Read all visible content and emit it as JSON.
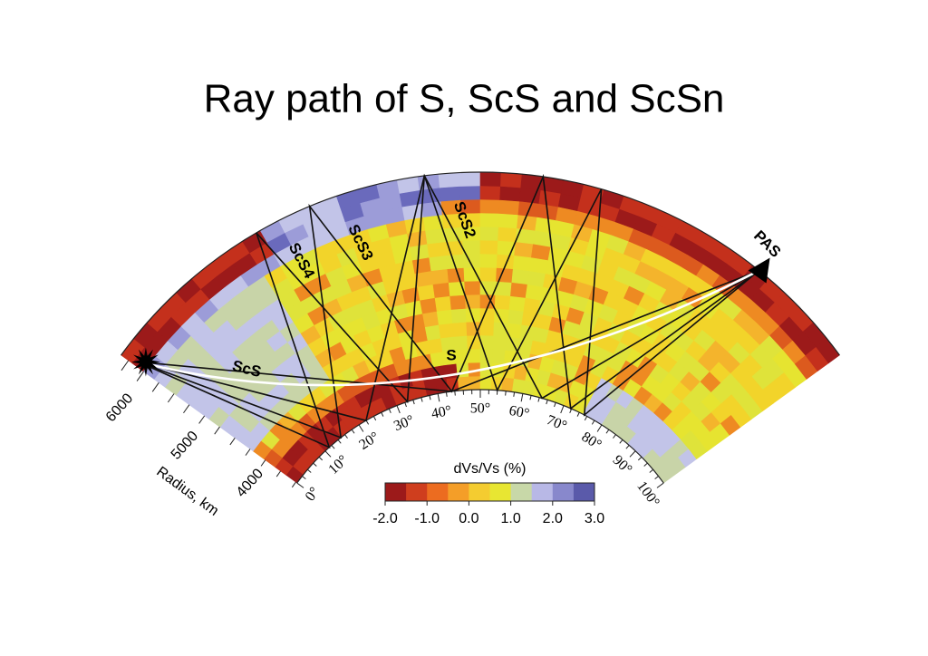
{
  "title": "Ray path of S, ScS and ScSn",
  "rays": [
    "ScS4",
    "ScS3",
    "ScS2",
    "ScS",
    "S"
  ],
  "station": "PAS",
  "angle_labels": [
    "0°",
    "10°",
    "20°",
    "30°",
    "40°",
    "50°",
    "60°",
    "70°",
    "80°",
    "90°",
    "100°"
  ],
  "radius_labels": [
    "6000",
    "5000",
    "4000"
  ],
  "radius_title": "Radius, km",
  "colorbar": {
    "label": "dVs/Vs (%)",
    "ticks": [
      "-2.0",
      "-1.0",
      "0.0",
      "1.0",
      "2.0",
      "3.0"
    ]
  }
}
